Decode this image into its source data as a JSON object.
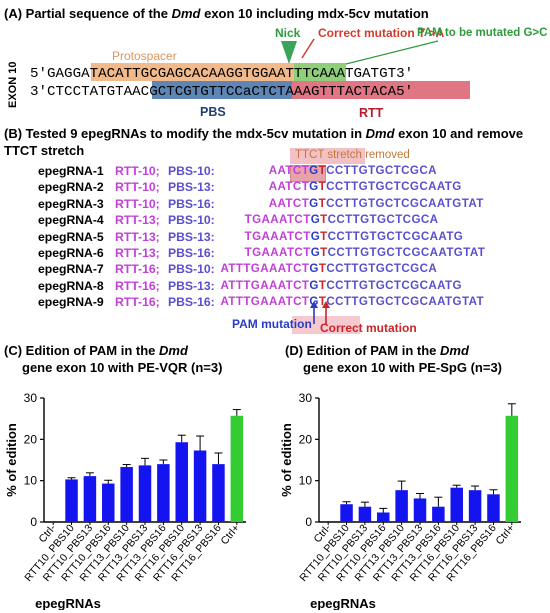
{
  "panelA": {
    "title_pre": "(A) Partial sequence of the ",
    "title_gene": "Dmd",
    "title_post": " exon 10  including mdx-5cv mutation",
    "exon_label": "EXON 10",
    "top_strand": "5'GAGGATACATTGCGAGCACAAGGTGGAATTTCAAATGATGT3'",
    "bottom_strand": "3'CTCCTATGTAACGCTCGTGTTCCaCTCTAAAGTTTACTACA5'",
    "protospacer_label": "Protospacer",
    "nick_label": "Nick",
    "correct_mutation_label": "Correct mutation T >A",
    "pam_label": "PAM to be mutated G>C",
    "pbs_label": "PBS",
    "rtt_label": "RTT",
    "colors": {
      "protospacer": "#f2b98a",
      "pam": "#8fcf7a",
      "pbs": "#5d86b6",
      "rtt": "#e07684",
      "nick": "#3aa35a",
      "red": "#d23c2e",
      "green": "#2f9b3c"
    }
  },
  "panelB": {
    "title_pre": "(B) Tested 9 epegRNAs to modify the mdx-5cv mutation in ",
    "title_gene": "Dmd",
    "title_post": " exon 10 and remove",
    "title_line2": "TTCT stretch",
    "ttct_label": "TTCT stretch removed",
    "pam_mutation_label": "PAM mutation",
    "correct_mutation_label": "Correct mutation",
    "rows": [
      {
        "name": "epegRNA-1",
        "rtt": "RTT-10;",
        "pbs": "PBS-10:",
        "seq_rtt": "AATCTGT",
        "seq_pbs": "CCTTGTGCTCGCA"
      },
      {
        "name": "epegRNA-2",
        "rtt": "RTT-10;",
        "pbs": "PBS-13:",
        "seq_rtt": "AATCTGT",
        "seq_pbs": "CCTTGTGCTCGCAATG"
      },
      {
        "name": "epegRNA-3",
        "rtt": "RTT-10;",
        "pbs": "PBS-16:",
        "seq_rtt": "AATCTGT",
        "seq_pbs": "CCTTGTGCTCGCAATGTAT"
      },
      {
        "name": "epegRNA-4",
        "rtt": "RTT-13;",
        "pbs": "PBS-10:",
        "seq_rtt": "TGAAATCTGT",
        "seq_pbs": "CCTTGTGCTCGCA"
      },
      {
        "name": "epegRNA-5",
        "rtt": "RTT-13;",
        "pbs": "PBS-13:",
        "seq_rtt": "TGAAATCTGT",
        "seq_pbs": "CCTTGTGCTCGCAATG"
      },
      {
        "name": "epegRNA-6",
        "rtt": "RTT-13;",
        "pbs": "PBS-16:",
        "seq_rtt": "TGAAATCTGT",
        "seq_pbs": "CCTTGTGCTCGCAATGTAT"
      },
      {
        "name": "epegRNA-7",
        "rtt": "RTT-16;",
        "pbs": "PBS-10:",
        "seq_rtt": "ATTTGAAATCTGT",
        "seq_pbs": "CCTTGTGCTCGCA"
      },
      {
        "name": "epegRNA-8",
        "rtt": "RTT-16;",
        "pbs": "PBS-13:",
        "seq_rtt": "ATTTGAAATCTGT",
        "seq_pbs": "CCTTGTGCTCGCAATG"
      },
      {
        "name": "epegRNA-9",
        "rtt": "RTT-16;",
        "pbs": "PBS-16:",
        "seq_rtt": "ATTTGAAATCTGT",
        "seq_pbs": "CCTTGTGCTCGCAATGTAT"
      }
    ]
  },
  "panelC": {
    "title_line1": "(C) Edition of PAM in the ",
    "title_gene": "Dmd",
    "title_line2": "gene exon 10 with PE-VQR (n=3)"
  },
  "panelD": {
    "title_line1": "(D) Edition of PAM in the ",
    "title_gene": "Dmd",
    "title_line2": "gene exon 10 with PE-SpG (n=3)"
  },
  "chart_data": [
    {
      "type": "bar",
      "ylabel": "% of edition",
      "xlabel": "epegRNAs",
      "ylim": [
        0,
        30
      ],
      "yticks": [
        0,
        10,
        20,
        30
      ],
      "categories": [
        "Ctrl-",
        "RTT10_PBS10",
        "RTT10_PBS13",
        "RTT10_PBS16",
        "RTT13_PBS10",
        "RTT13_PBS13",
        "RTT13_PBS16",
        "RTT16_PBS10",
        "RTT16_PBS13",
        "RTT16_PBS16",
        "Ctrl+"
      ],
      "values": [
        0,
        10.3,
        11.1,
        9.3,
        13.3,
        13.7,
        14.0,
        19.3,
        17.3,
        14.0,
        25.7
      ],
      "errors": [
        0,
        0.4,
        0.8,
        0.8,
        0.6,
        1.7,
        1.0,
        1.7,
        3.5,
        2.7,
        1.5
      ],
      "colors": {
        "bar": "#1414f0",
        "positive": "#33cc33"
      }
    },
    {
      "type": "bar",
      "ylabel": "% of edition",
      "xlabel": "epegRNAs",
      "ylim": [
        0,
        30
      ],
      "yticks": [
        0,
        10,
        20,
        30
      ],
      "categories": [
        "Ctrl-",
        "RTT10_PBS10",
        "RTT10_PBS13",
        "RTT10_PBS16",
        "RTT13_PBS10",
        "RTT13_PBS13",
        "RTT13_PBS16",
        "RTT16_PBS10",
        "RTT16_PBS13",
        "RTT16_PBS16",
        "Ctrl+"
      ],
      "values": [
        0,
        4.3,
        3.7,
        2.3,
        7.7,
        5.7,
        3.7,
        8.3,
        7.7,
        6.7,
        25.7
      ],
      "errors": [
        0,
        0.6,
        1.1,
        1.0,
        2.2,
        1.2,
        2.3,
        0.6,
        1.0,
        1.1,
        2.9
      ],
      "colors": {
        "bar": "#1414f0",
        "positive": "#33cc33"
      }
    }
  ]
}
